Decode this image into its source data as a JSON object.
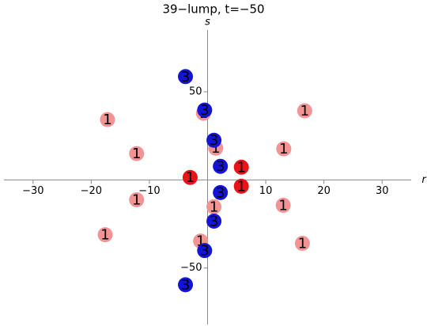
{
  "chart_data": {
    "type": "scatter",
    "title": "39−lump, t=−50",
    "x_label": "r",
    "y_label": "s",
    "xlim": [
      -35,
      35
    ],
    "ylim": [
      -82,
      85
    ],
    "xticks": [
      {
        "value": -30,
        "label": "−30"
      },
      {
        "value": -20,
        "label": "−20"
      },
      {
        "value": -10,
        "label": "−10"
      },
      10,
      20,
      30
    ],
    "yticks": [
      50,
      {
        "value": -50,
        "label": "−50"
      }
    ],
    "series": [
      {
        "color": "#f29494",
        "label": "1",
        "x": [
          -17.2,
          16.7,
          -12.2,
          13.1,
          -12.2,
          13.0,
          -17.6,
          16.3,
          -0.7,
          1.4,
          1.1,
          -1.2
        ],
        "y": [
          34.2,
          39.2,
          14.9,
          17.6,
          -11.3,
          -14.4,
          -31.1,
          -36.0,
          37.8,
          18.0,
          -15.3,
          -34.7
        ]
      },
      {
        "color": "#e8141a",
        "label": "1",
        "x": [
          -3.0,
          5.8,
          5.8
        ],
        "y": [
          1.4,
          7.2,
          -3.6
        ]
      },
      {
        "color": "#1414d8",
        "label": "3",
        "x": [
          -3.8,
          -0.5,
          1.1,
          2.2,
          2.2,
          1.1,
          -0.5,
          -3.8
        ],
        "y": [
          58.6,
          39.6,
          22.5,
          7.7,
          -7.2,
          -23.4,
          -40.1,
          -59.5
        ]
      }
    ]
  }
}
